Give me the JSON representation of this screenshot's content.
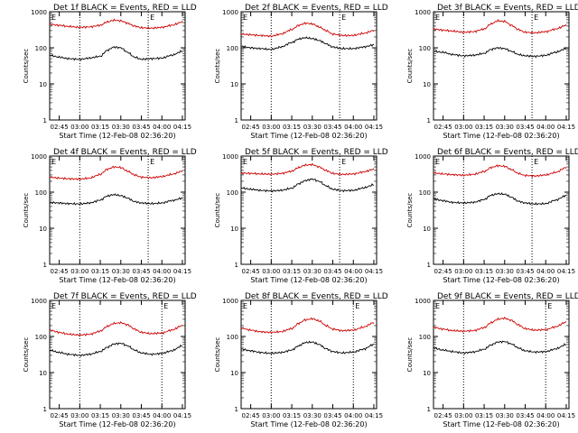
{
  "page": {
    "background": "#ffffff"
  },
  "colors": {
    "events": "#000000",
    "lld": "#cc0000",
    "axes": "#000000"
  },
  "chart_data": [
    {
      "type": "line",
      "title": "Det 1f BLACK = Events, RED = LLD",
      "xlabel": "Start Time (12-Feb-08 02:36:20)",
      "ylabel": "Counts/sec",
      "ylog": true,
      "ylim": [
        1,
        1000
      ],
      "yticks": [
        "1",
        "10",
        "100",
        "1000"
      ],
      "xticks": [
        "02:45",
        "03:00",
        "03:15",
        "03:30",
        "03:45",
        "04:00",
        "04:15"
      ],
      "dotted_vlines": [
        "03:00",
        "03:50"
      ],
      "marker_label": "E",
      "series": [
        {
          "name": "Events",
          "x": [
            "02:38",
            "02:45",
            "02:52",
            "03:00",
            "03:07",
            "03:15",
            "03:20",
            "03:25",
            "03:30",
            "03:35",
            "03:40",
            "03:45",
            "03:52",
            "04:00",
            "04:07",
            "04:15"
          ],
          "values": [
            62,
            55,
            50,
            48,
            52,
            58,
            85,
            105,
            100,
            75,
            55,
            48,
            50,
            52,
            62,
            80
          ]
        },
        {
          "name": "LLD",
          "x": [
            "02:38",
            "02:45",
            "02:52",
            "03:00",
            "03:07",
            "03:15",
            "03:20",
            "03:25",
            "03:30",
            "03:35",
            "03:40",
            "03:45",
            "03:52",
            "04:00",
            "04:07",
            "04:15"
          ],
          "values": [
            450,
            420,
            390,
            370,
            380,
            420,
            520,
            580,
            560,
            480,
            400,
            360,
            350,
            370,
            420,
            520
          ]
        }
      ]
    },
    {
      "type": "line",
      "title": "Det 2f BLACK = Events, RED = LLD",
      "xlabel": "Start Time (12-Feb-08 02:36:20)",
      "ylabel": "Counts/sec",
      "ylog": true,
      "ylim": [
        1,
        1000
      ],
      "yticks": [
        "1",
        "10",
        "100",
        "1000"
      ],
      "xticks": [
        "02:45",
        "03:00",
        "03:15",
        "03:30",
        "03:45",
        "04:00",
        "04:15"
      ],
      "dotted_vlines": [
        "03:00",
        "03:50"
      ],
      "marker_label": "E",
      "series": [
        {
          "name": "Events",
          "x": [
            "02:38",
            "02:45",
            "02:52",
            "03:00",
            "03:07",
            "03:15",
            "03:20",
            "03:25",
            "03:30",
            "03:35",
            "03:40",
            "03:45",
            "03:52",
            "04:00",
            "04:07",
            "04:15"
          ],
          "values": [
            110,
            100,
            95,
            90,
            105,
            140,
            175,
            190,
            180,
            160,
            130,
            105,
            95,
            95,
            105,
            120
          ]
        },
        {
          "name": "LLD",
          "x": [
            "02:38",
            "02:45",
            "02:52",
            "03:00",
            "03:07",
            "03:15",
            "03:20",
            "03:25",
            "03:30",
            "03:35",
            "03:40",
            "03:45",
            "03:52",
            "04:00",
            "04:07",
            "04:15"
          ],
          "values": [
            240,
            230,
            220,
            210,
            240,
            320,
            420,
            480,
            460,
            380,
            300,
            240,
            220,
            220,
            250,
            300
          ]
        }
      ]
    },
    {
      "type": "line",
      "title": "Det 3f BLACK = Events, RED = LLD",
      "xlabel": "Start Time (12-Feb-08 02:36:20)",
      "ylabel": "Counts/sec",
      "ylog": true,
      "ylim": [
        1,
        1000
      ],
      "yticks": [
        "1",
        "10",
        "100",
        "1000"
      ],
      "xticks": [
        "02:45",
        "03:00",
        "03:15",
        "03:30",
        "03:45",
        "04:00",
        "04:15"
      ],
      "dotted_vlines": [
        "03:00",
        "03:50"
      ],
      "marker_label": "E",
      "series": [
        {
          "name": "Events",
          "x": [
            "02:38",
            "02:45",
            "02:52",
            "03:00",
            "03:07",
            "03:15",
            "03:20",
            "03:25",
            "03:30",
            "03:35",
            "03:40",
            "03:45",
            "03:52",
            "04:00",
            "04:07",
            "04:15"
          ],
          "values": [
            80,
            75,
            65,
            60,
            62,
            70,
            90,
            100,
            95,
            80,
            65,
            60,
            58,
            62,
            75,
            95
          ]
        },
        {
          "name": "LLD",
          "x": [
            "02:38",
            "02:45",
            "02:52",
            "03:00",
            "03:07",
            "03:15",
            "03:20",
            "03:25",
            "03:30",
            "03:35",
            "03:40",
            "03:45",
            "03:52",
            "04:00",
            "04:07",
            "04:15"
          ],
          "values": [
            330,
            310,
            290,
            270,
            280,
            330,
            460,
            560,
            540,
            420,
            320,
            270,
            260,
            280,
            330,
            420
          ]
        }
      ]
    },
    {
      "type": "line",
      "title": "Det 4f BLACK = Events, RED = LLD",
      "xlabel": "Start Time (12-Feb-08 02:36:20)",
      "ylabel": "Counts/sec",
      "ylog": true,
      "ylim": [
        1,
        1000
      ],
      "yticks": [
        "1",
        "10",
        "100",
        "1000"
      ],
      "xticks": [
        "02:45",
        "03:00",
        "03:15",
        "03:30",
        "03:45",
        "04:00",
        "04:15"
      ],
      "dotted_vlines": [
        "03:00",
        "03:50"
      ],
      "marker_label": "E",
      "series": [
        {
          "name": "Events",
          "x": [
            "02:38",
            "02:45",
            "02:52",
            "03:00",
            "03:07",
            "03:15",
            "03:20",
            "03:25",
            "03:30",
            "03:35",
            "03:40",
            "03:45",
            "03:52",
            "04:00",
            "04:07",
            "04:15"
          ],
          "values": [
            52,
            50,
            48,
            47,
            50,
            60,
            78,
            85,
            80,
            68,
            55,
            50,
            48,
            50,
            58,
            68
          ]
        },
        {
          "name": "LLD",
          "x": [
            "02:38",
            "02:45",
            "02:52",
            "03:00",
            "03:07",
            "03:15",
            "03:20",
            "03:25",
            "03:30",
            "03:35",
            "03:40",
            "03:45",
            "03:52",
            "04:00",
            "04:07",
            "04:15"
          ],
          "values": [
            260,
            245,
            235,
            230,
            245,
            310,
            430,
            500,
            480,
            380,
            300,
            260,
            250,
            270,
            310,
            380
          ]
        }
      ]
    },
    {
      "type": "line",
      "title": "Det 5f BLACK = Events, RED = LLD",
      "xlabel": "Start Time (12-Feb-08 02:36:20)",
      "ylabel": "Counts/sec",
      "ylog": true,
      "ylim": [
        1,
        1000
      ],
      "yticks": [
        "1",
        "10",
        "100",
        "1000"
      ],
      "xticks": [
        "02:45",
        "03:00",
        "03:15",
        "03:30",
        "03:45",
        "04:00",
        "04:15"
      ],
      "dotted_vlines": [
        "03:00",
        "03:50"
      ],
      "marker_label": "E",
      "series": [
        {
          "name": "Events",
          "x": [
            "02:38",
            "02:45",
            "02:52",
            "03:00",
            "03:07",
            "03:15",
            "03:20",
            "03:25",
            "03:30",
            "03:35",
            "03:40",
            "03:45",
            "03:52",
            "04:00",
            "04:07",
            "04:15"
          ],
          "values": [
            130,
            120,
            112,
            108,
            112,
            128,
            170,
            210,
            230,
            200,
            150,
            120,
            110,
            112,
            130,
            160
          ]
        },
        {
          "name": "LLD",
          "x": [
            "02:38",
            "02:45",
            "02:52",
            "03:00",
            "03:07",
            "03:15",
            "03:20",
            "03:25",
            "03:30",
            "03:35",
            "03:40",
            "03:45",
            "03:52",
            "04:00",
            "04:07",
            "04:15"
          ],
          "values": [
            340,
            330,
            320,
            315,
            330,
            380,
            480,
            560,
            580,
            500,
            400,
            330,
            310,
            320,
            360,
            430
          ]
        }
      ]
    },
    {
      "type": "line",
      "title": "Det 6f BLACK = Events, RED = LLD",
      "xlabel": "Start Time (12-Feb-08 02:36:20)",
      "ylabel": "Counts/sec",
      "ylog": true,
      "ylim": [
        1,
        1000
      ],
      "yticks": [
        "1",
        "10",
        "100",
        "1000"
      ],
      "xticks": [
        "02:45",
        "03:00",
        "03:15",
        "03:30",
        "03:45",
        "04:00",
        "04:15"
      ],
      "dotted_vlines": [
        "03:00",
        "03:50"
      ],
      "marker_label": "E",
      "series": [
        {
          "name": "Events",
          "x": [
            "02:38",
            "02:45",
            "02:52",
            "03:00",
            "03:07",
            "03:15",
            "03:20",
            "03:25",
            "03:30",
            "03:35",
            "03:40",
            "03:45",
            "03:52",
            "04:00",
            "04:07",
            "04:15"
          ],
          "values": [
            65,
            58,
            52,
            50,
            52,
            62,
            82,
            90,
            88,
            72,
            56,
            50,
            47,
            48,
            60,
            80
          ]
        },
        {
          "name": "LLD",
          "x": [
            "02:38",
            "02:45",
            "02:52",
            "03:00",
            "03:07",
            "03:15",
            "03:20",
            "03:25",
            "03:30",
            "03:35",
            "03:40",
            "03:45",
            "03:52",
            "04:00",
            "04:07",
            "04:15"
          ],
          "values": [
            340,
            320,
            305,
            295,
            310,
            370,
            480,
            540,
            520,
            420,
            330,
            290,
            280,
            300,
            350,
            480
          ]
        }
      ]
    },
    {
      "type": "line",
      "title": "Det 7f BLACK = Events, RED = LLD",
      "xlabel": "Start Time (12-Feb-08 02:36:20)",
      "ylabel": "Counts/sec",
      "ylog": true,
      "ylim": [
        1,
        1000
      ],
      "yticks": [
        "1",
        "10",
        "100",
        "1000"
      ],
      "xticks": [
        "02:45",
        "03:00",
        "03:15",
        "03:30",
        "03:45",
        "04:00",
        "04:15"
      ],
      "dotted_vlines": [
        "03:00",
        "04:00"
      ],
      "marker_label": "E",
      "series": [
        {
          "name": "Events",
          "x": [
            "02:38",
            "02:45",
            "02:52",
            "03:00",
            "03:07",
            "03:15",
            "03:20",
            "03:25",
            "03:30",
            "03:35",
            "03:40",
            "03:45",
            "03:52",
            "04:00",
            "04:07",
            "04:15"
          ],
          "values": [
            42,
            36,
            32,
            30,
            32,
            38,
            50,
            62,
            65,
            55,
            42,
            35,
            32,
            34,
            40,
            55
          ]
        },
        {
          "name": "LLD",
          "x": [
            "02:38",
            "02:45",
            "02:52",
            "03:00",
            "03:07",
            "03:15",
            "03:20",
            "03:25",
            "03:30",
            "03:35",
            "03:40",
            "03:45",
            "03:52",
            "04:00",
            "04:07",
            "04:15"
          ],
          "values": [
            150,
            130,
            115,
            110,
            115,
            140,
            190,
            230,
            240,
            210,
            160,
            130,
            120,
            125,
            150,
            200
          ]
        }
      ]
    },
    {
      "type": "line",
      "title": "Det 8f BLACK = Events, RED = LLD",
      "xlabel": "Start Time (12-Feb-08 02:36:20)",
      "ylabel": "Counts/sec",
      "ylog": true,
      "ylim": [
        1,
        1000
      ],
      "yticks": [
        "1",
        "10",
        "100",
        "1000"
      ],
      "xticks": [
        "02:45",
        "03:00",
        "03:15",
        "03:30",
        "03:45",
        "04:00",
        "04:15"
      ],
      "dotted_vlines": [
        "03:00",
        "04:00"
      ],
      "marker_label": "E",
      "series": [
        {
          "name": "Events",
          "x": [
            "02:38",
            "02:45",
            "02:52",
            "03:00",
            "03:07",
            "03:15",
            "03:20",
            "03:25",
            "03:30",
            "03:35",
            "03:40",
            "03:45",
            "03:52",
            "04:00",
            "04:07",
            "04:15"
          ],
          "values": [
            45,
            40,
            36,
            34,
            36,
            42,
            55,
            68,
            70,
            60,
            46,
            38,
            35,
            37,
            44,
            60
          ]
        },
        {
          "name": "LLD",
          "x": [
            "02:38",
            "02:45",
            "02:52",
            "03:00",
            "03:07",
            "03:15",
            "03:20",
            "03:25",
            "03:30",
            "03:35",
            "03:40",
            "03:45",
            "03:52",
            "04:00",
            "04:07",
            "04:15"
          ],
          "values": [
            170,
            150,
            135,
            130,
            135,
            165,
            230,
            290,
            310,
            270,
            200,
            160,
            145,
            150,
            180,
            240
          ]
        }
      ]
    },
    {
      "type": "line",
      "title": "Det 9f BLACK = Events, RED = LLD",
      "xlabel": "Start Time (12-Feb-08 02:36:20)",
      "ylabel": "Counts/sec",
      "ylog": true,
      "ylim": [
        1,
        1000
      ],
      "yticks": [
        "1",
        "10",
        "100",
        "1000"
      ],
      "xticks": [
        "02:45",
        "03:00",
        "03:15",
        "03:30",
        "03:45",
        "04:00",
        "04:15"
      ],
      "dotted_vlines": [
        "03:00",
        "04:00"
      ],
      "marker_label": "E",
      "series": [
        {
          "name": "Events",
          "x": [
            "02:38",
            "02:45",
            "02:52",
            "03:00",
            "03:07",
            "03:15",
            "03:20",
            "03:25",
            "03:30",
            "03:35",
            "03:40",
            "03:45",
            "03:52",
            "04:00",
            "04:07",
            "04:15"
          ],
          "values": [
            48,
            42,
            38,
            35,
            37,
            44,
            58,
            70,
            72,
            62,
            48,
            40,
            37,
            38,
            45,
            60
          ]
        },
        {
          "name": "LLD",
          "x": [
            "02:38",
            "02:45",
            "02:52",
            "03:00",
            "03:07",
            "03:15",
            "03:20",
            "03:25",
            "03:30",
            "03:35",
            "03:40",
            "03:45",
            "03:52",
            "04:00",
            "04:07",
            "04:15"
          ],
          "values": [
            180,
            160,
            145,
            140,
            145,
            175,
            240,
            300,
            320,
            280,
            210,
            165,
            150,
            155,
            185,
            250
          ]
        }
      ]
    }
  ]
}
